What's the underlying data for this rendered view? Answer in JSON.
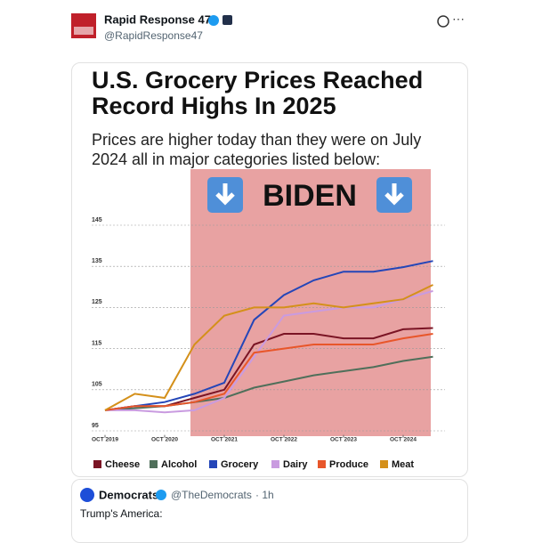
{
  "post": {
    "name": "Rapid Response 47",
    "handle": "@RapidResponse47"
  },
  "chart_data": {
    "type": "line",
    "title": "U.S. Grocery Prices Reached Record Highs In 2025",
    "subtitle": "Prices are higher today than they were on July 2024 all in major categories listed below:",
    "annotation": "BIDEN",
    "x": [
      "2019-10",
      "2020-04",
      "2020-10",
      "2021-04",
      "2021-10",
      "2022-04",
      "2022-10",
      "2023-04",
      "2023-10",
      "2024-04",
      "2024-10",
      "2025-04"
    ],
    "xticks": [
      {
        "value": "2019-10",
        "label": "OCT 2019"
      },
      {
        "value": "2020-10",
        "label": "OCT 2020"
      },
      {
        "value": "2021-10",
        "label": "OCT 2021"
      },
      {
        "value": "2022-10",
        "label": "OCT 2022"
      },
      {
        "value": "2023-10",
        "label": "OCT 2023"
      },
      {
        "value": "2024-10",
        "label": "OCT 2024"
      }
    ],
    "ylim": [
      94,
      147
    ],
    "yticks": [
      95,
      105,
      115,
      125,
      135,
      145
    ],
    "grid": true,
    "series": [
      {
        "name": "Cheese",
        "color": "#7a1424",
        "values": [
          100,
          101,
          101,
          103,
          105,
          116,
          118.6,
          118.6,
          117.5,
          117.5,
          119.7,
          120
        ]
      },
      {
        "name": "Alcohol",
        "color": "#4f6f5a",
        "values": [
          100,
          100.5,
          101,
          102,
          103,
          105.5,
          107,
          108.5,
          109.5,
          110.5,
          112,
          113
        ]
      },
      {
        "name": "Grocery",
        "color": "#2446b8",
        "values": [
          100,
          101,
          102,
          104,
          106.7,
          122,
          128,
          131.6,
          133.7,
          133.7,
          134.8,
          136.3
        ]
      },
      {
        "name": "Dairy",
        "color": "#c99be0",
        "values": [
          100,
          100,
          99.5,
          100,
          103,
          113,
          123,
          124,
          125,
          125,
          127,
          129
        ]
      },
      {
        "name": "Produce",
        "color": "#e8562a",
        "values": [
          100,
          101,
          101,
          102,
          104,
          114,
          115,
          116,
          116,
          116,
          117.5,
          118.6
        ]
      },
      {
        "name": "Meat",
        "color": "#d4901a",
        "values": [
          100,
          104,
          103,
          116,
          123,
          125,
          125,
          126,
          125,
          126,
          127,
          130.5
        ]
      }
    ]
  },
  "quote": {
    "name": "Democrats",
    "handle": "@TheDemocrats",
    "time": "· 1h",
    "text": "Trump's America:"
  }
}
